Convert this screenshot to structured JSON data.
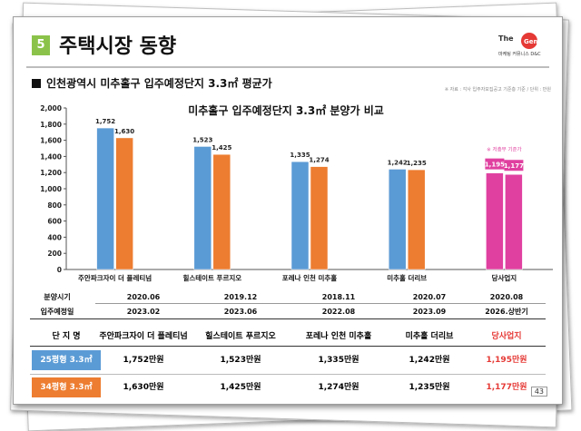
{
  "header": {
    "section_number": "5",
    "title": "주택시장 동향",
    "subtitle": "인천광역시 미추홀구 입주예정단지 3.3㎡ 평균가",
    "source": "※ 자료 : 각사 입주자모집공고 기준층 기준 / 단위 : 만원",
    "logo_text": "The Gen 마케팅 커뮤니스 D&C"
  },
  "colors": {
    "blue": "#5b9bd5",
    "orange": "#ed7d31",
    "magenta": "#e040a0",
    "label_blue": "#5b9bd5",
    "label_orange": "#ed7d31",
    "red_text": "#e53935"
  },
  "chart_data": {
    "type": "bar",
    "title": "미추홀구 입주예정단지 3.3㎡ 분양가 비교",
    "categories": [
      "주안파크자이 더 플레티넘",
      "힐스테이트 푸르지오",
      "포레나 인천 미추홀",
      "미추홀 더리브",
      "당사업지"
    ],
    "series": [
      {
        "name": "25평형 3.3㎡",
        "values": [
          1752,
          1523,
          1335,
          1242,
          1195
        ]
      },
      {
        "name": "34평형 3.3㎡",
        "values": [
          1630,
          1425,
          1274,
          1235,
          1177
        ]
      }
    ],
    "value_labels": [
      [
        "1,752",
        "1,630"
      ],
      [
        "1,523",
        "1,425"
      ],
      [
        "1,335",
        "1,274"
      ],
      [
        "1,242",
        "1,235"
      ],
      [
        "1,195",
        "1,177"
      ]
    ],
    "ylim": [
      0,
      2000
    ],
    "yticks": [
      0,
      200,
      400,
      600,
      800,
      1000,
      1200,
      1400,
      1600,
      1800,
      2000
    ],
    "ytick_labels": [
      "0",
      "200",
      "400",
      "600",
      "800",
      "1,000",
      "1,200",
      "1,400",
      "1,600",
      "1,800",
      "2,000"
    ],
    "highlight_note": "※ 저층부 기준가",
    "grid": false,
    "legend": "none"
  },
  "table": {
    "rows": [
      {
        "label": "분양시기",
        "values": [
          "2020.06",
          "2019.12",
          "2018.11",
          "2020.07",
          "2020.08"
        ]
      },
      {
        "label": "입주예정일",
        "values": [
          "2023.02",
          "2023.06",
          "2022.08",
          "2023.09",
          "2026.상반기"
        ]
      }
    ],
    "header_label": "단 지 명",
    "header_values": [
      "주안파크자이 더 플레티넘",
      "힐스테이트 푸르지오",
      "포레나 인천 미추홀",
      "미추홀 더리브",
      "당사업지"
    ],
    "price_rows": [
      {
        "label": "25평형 3.3㎡",
        "values": [
          "1,752만원",
          "1,523만원",
          "1,335만원",
          "1,242만원",
          "1,195만원"
        ]
      },
      {
        "label": "34평형 3.3㎡",
        "values": [
          "1,630만원",
          "1,425만원",
          "1,274만원",
          "1,235만원",
          "1,177만원"
        ]
      }
    ]
  },
  "page_number": "43"
}
